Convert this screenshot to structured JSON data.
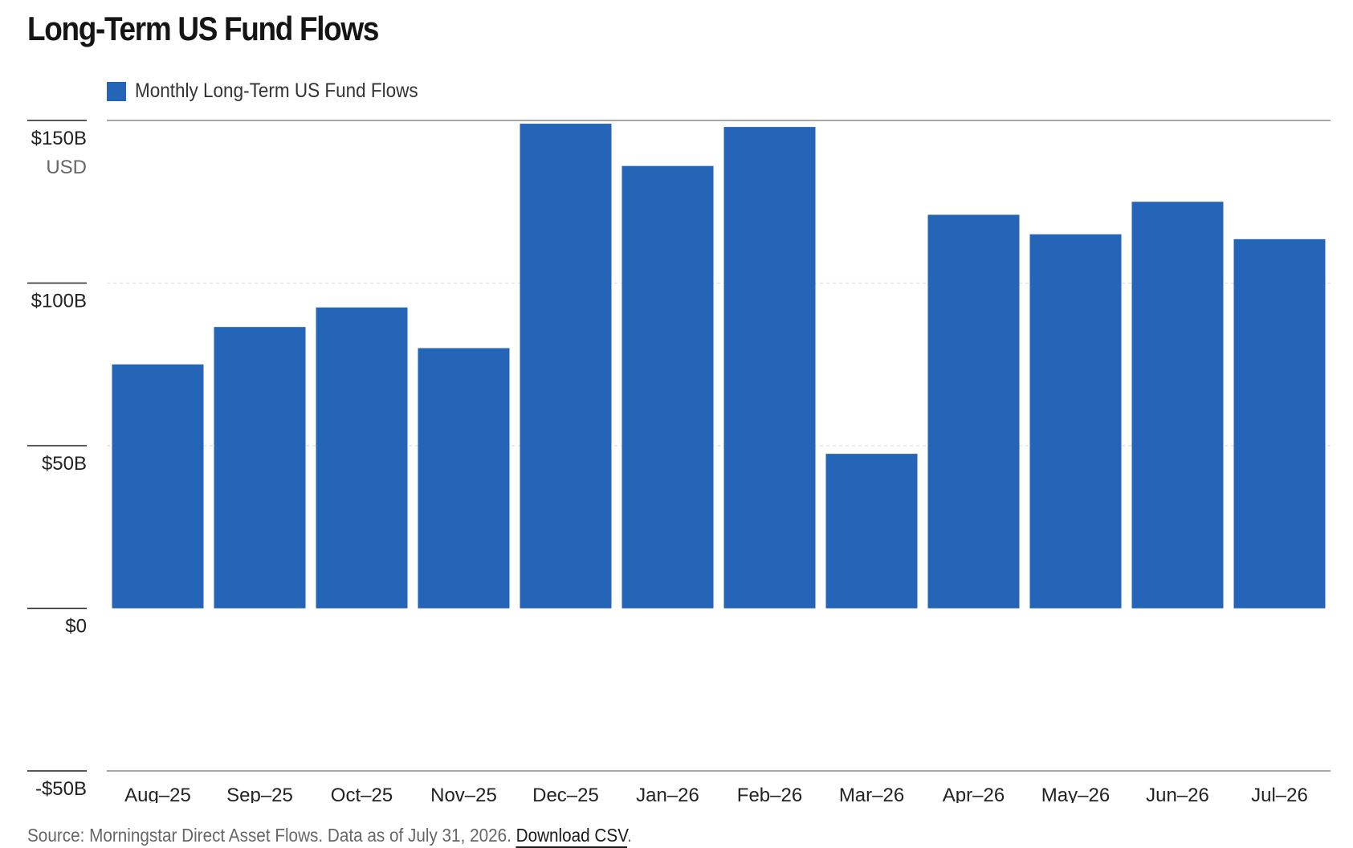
{
  "title": "Long-Term US Fund Flows",
  "colors": {
    "bar": "#2565b8",
    "grid": "#dddddd",
    "axis": "#888888"
  },
  "legend": {
    "label": "Monthly Long-Term US Fund Flows"
  },
  "source": {
    "text": "Source: Morningstar Direct Asset Flows. Data as of July 31, 2026.",
    "link_label": "Download CSV",
    "trailing": "."
  },
  "chart_data": {
    "type": "bar",
    "title": "Long-Term US Fund Flows",
    "xlabel": "",
    "ylabel": "",
    "unit_label": "USD",
    "ylim": [
      -50,
      150
    ],
    "yticks": [
      {
        "value": 150,
        "label": "$150B"
      },
      {
        "value": 100,
        "label": "$100B"
      },
      {
        "value": 50,
        "label": "$50B"
      },
      {
        "value": 0,
        "label": "$0"
      },
      {
        "value": -50,
        "label": "-$50B"
      }
    ],
    "categories": [
      "Aug–25",
      "Sep–25",
      "Oct–25",
      "Nov–25",
      "Dec–25",
      "Jan–26",
      "Feb–26",
      "Mar–26",
      "Apr–26",
      "May–26",
      "Jun–26",
      "Jul–26"
    ],
    "series": [
      {
        "name": "Monthly Long-Term US Fund Flows",
        "values": [
          75,
          86.5,
          92.5,
          80,
          149,
          136,
          148,
          47.5,
          121,
          115,
          125,
          113.5
        ]
      }
    ],
    "grid": true,
    "legend_position": "top-left"
  }
}
